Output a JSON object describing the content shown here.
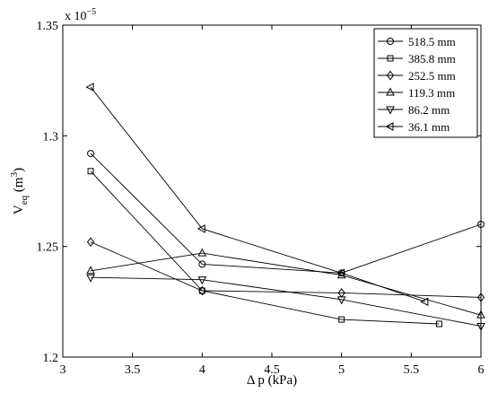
{
  "chart_data": {
    "type": "line",
    "xlabel": "Δ p (kPa)",
    "ylabel_main": "V",
    "ylabel_sub": "eq",
    "ylabel_unit": " (m",
    "ylabel_unit_sup": "3",
    "ylabel_close": ")",
    "exponent_base": "x 10",
    "exponent_power": "−5",
    "xlim": [
      3,
      6
    ],
    "ylim": [
      1.2,
      1.35
    ],
    "xticks": [
      3,
      3.5,
      4,
      4.5,
      5,
      5.5,
      6
    ],
    "xtick_labels": [
      "3",
      "3.5",
      "4",
      "4.5",
      "5",
      "5.5",
      "6"
    ],
    "yticks": [
      1.2,
      1.25,
      1.3,
      1.35
    ],
    "ytick_labels": [
      "1.2",
      "1.25",
      "1.3",
      "1.35"
    ],
    "grid": false,
    "legend_position": "top-right",
    "series": [
      {
        "name": "518.5 mm",
        "marker": "circle",
        "x": [
          3.2,
          4,
          5,
          6
        ],
        "y": [
          1.292,
          1.242,
          1.238,
          1.26
        ]
      },
      {
        "name": "385.8 mm",
        "marker": "square",
        "x": [
          3.2,
          4,
          5,
          5.7
        ],
        "y": [
          1.284,
          1.23,
          1.217,
          1.215
        ]
      },
      {
        "name": "252.5 mm",
        "marker": "diamond",
        "x": [
          3.2,
          4,
          5,
          6
        ],
        "y": [
          1.252,
          1.23,
          1.229,
          1.227
        ]
      },
      {
        "name": "119.3 mm",
        "marker": "triangle-up",
        "x": [
          3.2,
          4,
          5,
          6
        ],
        "y": [
          1.239,
          1.247,
          1.237,
          1.219
        ]
      },
      {
        "name": "86.2 mm",
        "marker": "triangle-down",
        "x": [
          3.2,
          4,
          5,
          6
        ],
        "y": [
          1.236,
          1.235,
          1.226,
          1.214
        ]
      },
      {
        "name": "36.1 mm",
        "marker": "triangle-left",
        "x": [
          3.2,
          4,
          5,
          5.6
        ],
        "y": [
          1.322,
          1.258,
          1.238,
          1.225
        ]
      }
    ]
  }
}
